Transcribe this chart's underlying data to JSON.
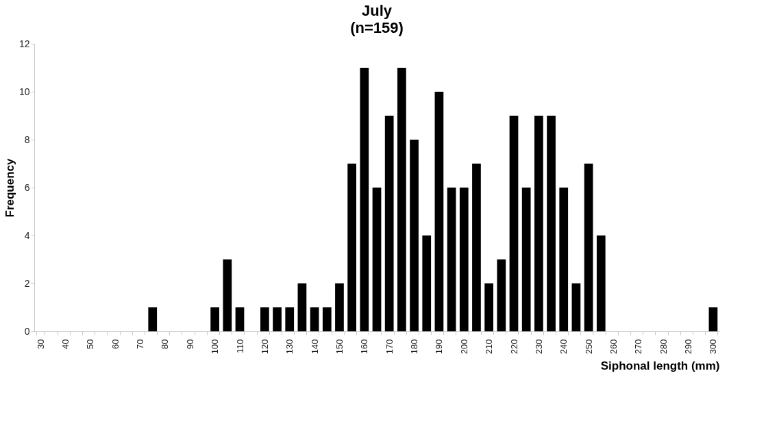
{
  "chart_data": {
    "type": "bar",
    "title": "July",
    "subtitle": "(n=159)",
    "xlabel": "Siphonal length (mm)",
    "ylabel": "Frequency",
    "categories": [
      "30",
      null,
      "40",
      null,
      "50",
      null,
      "60",
      null,
      "70",
      null,
      "80",
      null,
      "90",
      null,
      "100",
      null,
      "110",
      null,
      "120",
      null,
      "130",
      null,
      "140",
      null,
      "150",
      null,
      "160",
      null,
      "170",
      null,
      "180",
      null,
      "190",
      null,
      "200",
      null,
      "210",
      null,
      "220",
      null,
      "230",
      null,
      "240",
      null,
      "250",
      null,
      "260",
      null,
      "270",
      null,
      "280",
      null,
      "290",
      null,
      "300"
    ],
    "values": [
      0,
      0,
      0,
      0,
      0,
      0,
      0,
      0,
      0,
      1,
      0,
      0,
      0,
      0,
      1,
      3,
      1,
      0,
      1,
      1,
      1,
      2,
      1,
      1,
      2,
      7,
      11,
      6,
      9,
      11,
      8,
      4,
      10,
      6,
      6,
      7,
      2,
      3,
      9,
      6,
      9,
      9,
      6,
      2,
      7,
      4,
      0,
      0,
      0,
      0,
      0,
      0,
      0,
      0,
      1
    ],
    "color": "#000000",
    "ylim": [
      0,
      12
    ],
    "yticks": [
      0,
      2,
      4,
      6,
      8,
      10,
      12
    ],
    "grid": false
  }
}
